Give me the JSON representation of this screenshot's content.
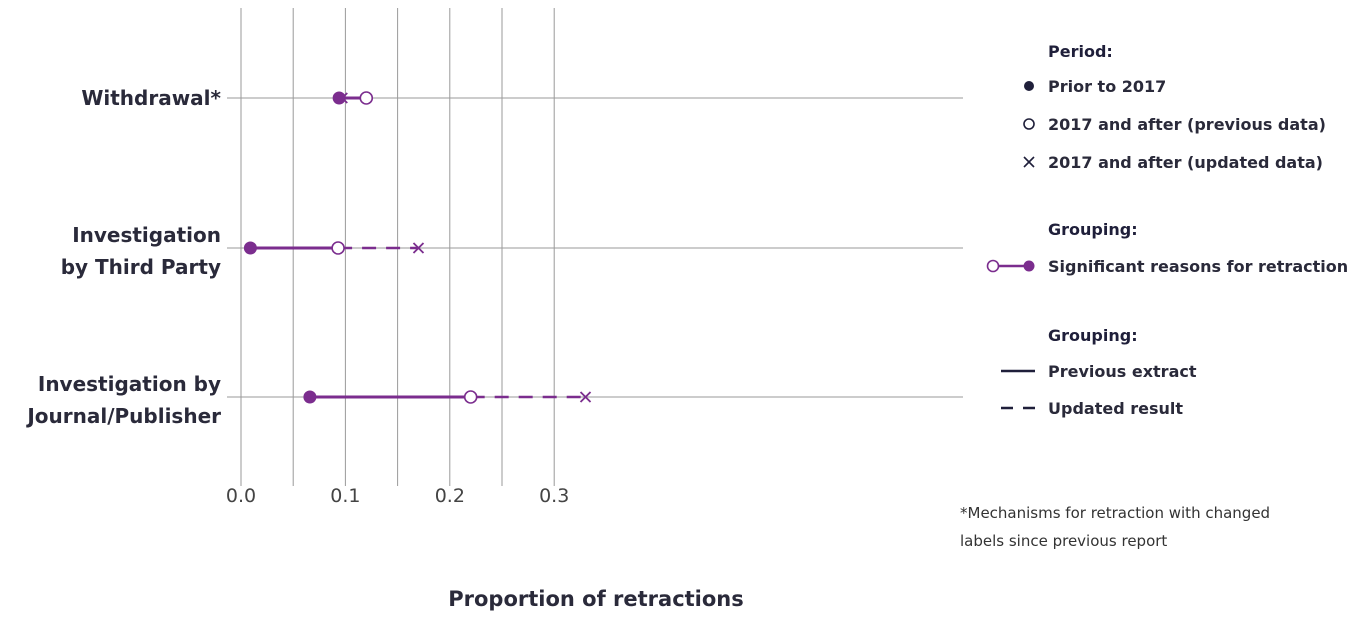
{
  "chart_data": {
    "type": "dumbbell",
    "xlabel": "Proportion of retractions",
    "xlim": [
      0,
      0.35
    ],
    "xticks": [
      0.0,
      0.1,
      0.2,
      0.3
    ],
    "xtick_labels": [
      "0.0",
      "0.1",
      "0.2",
      "0.3"
    ],
    "grid": true,
    "categories": [
      {
        "label_lines": [
          "Withdrawal*"
        ],
        "prior": 0.094,
        "after_previous": 0.12,
        "after_updated": 0.097
      },
      {
        "label_lines": [
          "Investigation",
          "by Third Party"
        ],
        "prior": 0.009,
        "after_previous": 0.093,
        "after_updated": 0.17
      },
      {
        "label_lines": [
          "Investigation by",
          "Journal/Publisher"
        ],
        "prior": 0.066,
        "after_previous": 0.22,
        "after_updated": 0.33
      }
    ],
    "colors": {
      "series": "#7b2d8e",
      "grid": "#9a9a9a",
      "legend_marker": "#1f1f3a"
    },
    "legend": {
      "period_title": "Period:",
      "period_items": [
        "Prior to 2017",
        "2017 and after (previous data)",
        "2017 and after (updated data)"
      ],
      "grouping_title_1": "Grouping:",
      "grouping_item_1": "Significant reasons for retraction",
      "grouping_title_2": "Grouping:",
      "grouping_items_2": [
        "Previous extract",
        "Updated result"
      ]
    },
    "note_lines": [
      "*Mechanisms for retraction with changed",
      "labels since previous report"
    ]
  }
}
